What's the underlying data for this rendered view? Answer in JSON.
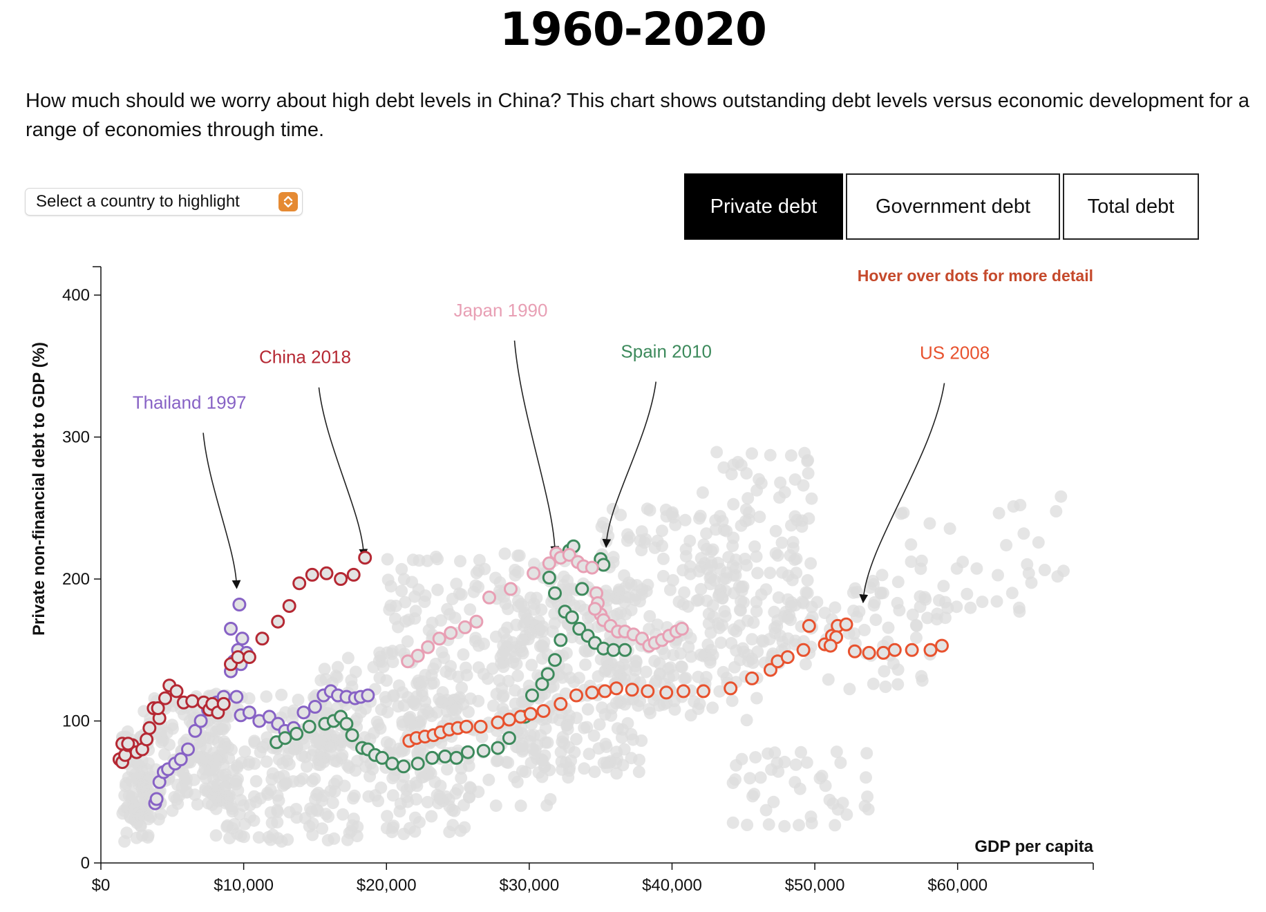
{
  "page": {
    "title": "1960-2020",
    "subtitle": "How much should we worry about high debt levels in China? This chart shows outstanding debt levels versus economic development for a range of economies through time."
  },
  "controls": {
    "select_label": "Select a country to highlight",
    "tabs": [
      {
        "label": "Private debt",
        "active": true
      },
      {
        "label": "Government debt",
        "active": false
      },
      {
        "label": "Total debt",
        "active": false
      }
    ],
    "accent_color": "#e58a33"
  },
  "chart_data": {
    "type": "scatter",
    "title": "1960-2020",
    "xlabel": "GDP per capita",
    "ylabel": "Private non-financial debt to GDP (%)",
    "xlim": [
      0,
      69500
    ],
    "ylim": [
      0,
      420
    ],
    "x_ticks": [
      0,
      10000,
      20000,
      30000,
      40000,
      50000,
      60000
    ],
    "x_tick_labels": [
      "$0",
      "$10,000",
      "$20,000",
      "$30,000",
      "$40,000",
      "$50,000",
      "$60,000"
    ],
    "y_ticks": [
      0,
      100,
      200,
      300,
      400
    ],
    "y_tick_labels": [
      "0",
      "100",
      "200",
      "300",
      "400"
    ],
    "hint": "Hover over dots for more detail",
    "hint_color": "#c5492b",
    "grid": false,
    "background_color": "#dcdcdc",
    "highlighted": [
      {
        "name": "Thailand",
        "color": "#8762c5",
        "points": [
          [
            3800,
            42
          ],
          [
            3900,
            45
          ],
          [
            4100,
            57
          ],
          [
            4400,
            64
          ],
          [
            4700,
            66
          ],
          [
            5200,
            70
          ],
          [
            5600,
            73
          ],
          [
            6100,
            80
          ],
          [
            6600,
            93
          ],
          [
            7000,
            100
          ],
          [
            7500,
            108
          ],
          [
            8100,
            113
          ],
          [
            8600,
            117
          ],
          [
            9100,
            135
          ],
          [
            9300,
            142
          ],
          [
            9600,
            150
          ],
          [
            9900,
            158
          ],
          [
            10200,
            148
          ],
          [
            9800,
            140
          ],
          [
            9500,
            117
          ],
          [
            9800,
            104
          ],
          [
            10400,
            106
          ],
          [
            11100,
            100
          ],
          [
            11800,
            103
          ],
          [
            12400,
            98
          ],
          [
            12900,
            93
          ],
          [
            13500,
            95
          ],
          [
            14200,
            106
          ],
          [
            15000,
            110
          ],
          [
            15600,
            118
          ],
          [
            16100,
            121
          ],
          [
            16600,
            118
          ],
          [
            17200,
            117
          ],
          [
            17800,
            116
          ],
          [
            18200,
            117
          ],
          [
            18700,
            118
          ],
          [
            9700,
            182
          ],
          [
            9100,
            165
          ]
        ]
      },
      {
        "name": "China",
        "color": "#b52833",
        "points": [
          [
            1300,
            73
          ],
          [
            1500,
            71
          ],
          [
            1700,
            76
          ],
          [
            1900,
            83
          ],
          [
            1500,
            84
          ],
          [
            2200,
            83
          ],
          [
            2500,
            78
          ],
          [
            2900,
            80
          ],
          [
            3200,
            87
          ],
          [
            3400,
            95
          ],
          [
            3700,
            109
          ],
          [
            4100,
            102
          ],
          [
            4500,
            116
          ],
          [
            4800,
            125
          ],
          [
            5300,
            121
          ],
          [
            5800,
            113
          ],
          [
            6400,
            114
          ],
          [
            7200,
            113
          ],
          [
            7600,
            108
          ],
          [
            7800,
            112
          ],
          [
            8200,
            106
          ],
          [
            8600,
            112
          ],
          [
            9100,
            140
          ],
          [
            9600,
            145
          ],
          [
            10400,
            145
          ],
          [
            11300,
            158
          ],
          [
            12400,
            170
          ],
          [
            13200,
            181
          ],
          [
            13900,
            197
          ],
          [
            14800,
            203
          ],
          [
            15800,
            204
          ],
          [
            16800,
            200
          ],
          [
            17700,
            203
          ],
          [
            18500,
            215
          ],
          [
            4000,
            109
          ],
          [
            1900,
            84
          ]
        ]
      },
      {
        "name": "Spain",
        "color": "#3d8a5c",
        "points": [
          [
            12300,
            85
          ],
          [
            12900,
            88
          ],
          [
            13700,
            91
          ],
          [
            14600,
            96
          ],
          [
            15700,
            98
          ],
          [
            16300,
            100
          ],
          [
            16800,
            103
          ],
          [
            17200,
            98
          ],
          [
            17600,
            90
          ],
          [
            18300,
            81
          ],
          [
            18700,
            80
          ],
          [
            19200,
            76
          ],
          [
            19700,
            74
          ],
          [
            20400,
            70
          ],
          [
            21200,
            68
          ],
          [
            22200,
            70
          ],
          [
            23200,
            74
          ],
          [
            24100,
            75
          ],
          [
            24900,
            74
          ],
          [
            25700,
            78
          ],
          [
            26800,
            79
          ],
          [
            27800,
            81
          ],
          [
            28600,
            88
          ],
          [
            29700,
            103
          ],
          [
            30200,
            118
          ],
          [
            30900,
            126
          ],
          [
            31300,
            133
          ],
          [
            31800,
            143
          ],
          [
            32200,
            157
          ],
          [
            32500,
            177
          ],
          [
            33000,
            173
          ],
          [
            33500,
            165
          ],
          [
            34100,
            160
          ],
          [
            34600,
            155
          ],
          [
            35200,
            151
          ],
          [
            35900,
            150
          ],
          [
            36700,
            150
          ],
          [
            32800,
            220
          ],
          [
            33100,
            223
          ],
          [
            35000,
            214
          ],
          [
            35200,
            210
          ],
          [
            31400,
            201
          ],
          [
            31800,
            190
          ],
          [
            33700,
            193
          ]
        ]
      },
      {
        "name": "Japan",
        "color": "#e89fb4",
        "points": [
          [
            21500,
            142
          ],
          [
            22200,
            146
          ],
          [
            22900,
            152
          ],
          [
            23700,
            158
          ],
          [
            24500,
            162
          ],
          [
            25500,
            166
          ],
          [
            26300,
            170
          ],
          [
            27200,
            187
          ],
          [
            28700,
            193
          ],
          [
            30300,
            204
          ],
          [
            31400,
            211
          ],
          [
            31900,
            218
          ],
          [
            32200,
            215
          ],
          [
            32800,
            217
          ],
          [
            33400,
            212
          ],
          [
            33800,
            209
          ],
          [
            34400,
            208
          ],
          [
            34700,
            190
          ],
          [
            34800,
            183
          ],
          [
            35000,
            175
          ],
          [
            35200,
            171
          ],
          [
            35700,
            167
          ],
          [
            36200,
            163
          ],
          [
            36700,
            163
          ],
          [
            37300,
            161
          ],
          [
            37900,
            158
          ],
          [
            38400,
            153
          ],
          [
            38800,
            155
          ],
          [
            39300,
            157
          ],
          [
            39800,
            160
          ],
          [
            40300,
            163
          ],
          [
            40700,
            165
          ],
          [
            34600,
            179
          ]
        ]
      },
      {
        "name": "US",
        "color": "#e8522e",
        "points": [
          [
            21600,
            86
          ],
          [
            22100,
            88
          ],
          [
            22700,
            89
          ],
          [
            23300,
            90
          ],
          [
            23800,
            92
          ],
          [
            24400,
            94
          ],
          [
            25000,
            95
          ],
          [
            25600,
            96
          ],
          [
            26600,
            96
          ],
          [
            27800,
            99
          ],
          [
            28600,
            101
          ],
          [
            29400,
            103
          ],
          [
            30100,
            105
          ],
          [
            31000,
            107
          ],
          [
            32200,
            112
          ],
          [
            33300,
            118
          ],
          [
            34400,
            120
          ],
          [
            35300,
            121
          ],
          [
            36100,
            123
          ],
          [
            37200,
            122
          ],
          [
            38300,
            121
          ],
          [
            39600,
            120
          ],
          [
            40800,
            121
          ],
          [
            42200,
            121
          ],
          [
            44100,
            123
          ],
          [
            45600,
            130
          ],
          [
            46900,
            136
          ],
          [
            47400,
            142
          ],
          [
            48100,
            145
          ],
          [
            49200,
            150
          ],
          [
            49600,
            167
          ],
          [
            50700,
            154
          ],
          [
            51200,
            160
          ],
          [
            51600,
            167
          ],
          [
            52200,
            168
          ],
          [
            52800,
            149
          ],
          [
            53800,
            148
          ],
          [
            54800,
            148
          ],
          [
            55600,
            150
          ],
          [
            56800,
            150
          ],
          [
            58100,
            150
          ],
          [
            58900,
            153
          ],
          [
            51500,
            159
          ],
          [
            51100,
            153
          ]
        ]
      }
    ],
    "annotations": [
      {
        "text": "Thailand 1997",
        "color": "#8762c5",
        "label_x": 6200,
        "label_y": 320,
        "target_x": 9500,
        "target_y": 196
      },
      {
        "text": "China 2018",
        "color": "#b52833",
        "label_x": 14300,
        "label_y": 352,
        "target_x": 18400,
        "target_y": 218
      },
      {
        "text": "Japan 1990",
        "color": "#e89fb4",
        "label_x": 28000,
        "label_y": 385,
        "target_x": 31800,
        "target_y": 220
      },
      {
        "text": "Spain 2010",
        "color": "#3d8a5c",
        "label_x": 39600,
        "label_y": 356,
        "target_x": 35400,
        "target_y": 225
      },
      {
        "text": "US 2008",
        "color": "#e8522e",
        "label_x": 59800,
        "label_y": 355,
        "target_x": 53400,
        "target_y": 186
      }
    ]
  }
}
